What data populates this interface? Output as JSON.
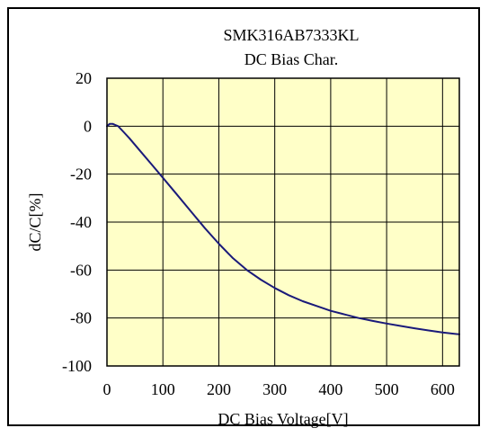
{
  "chart_data": {
    "type": "line",
    "title": "SMK316AB7333KL",
    "subtitle": "DC Bias Char.",
    "xlabel": "DC Bias Voltage[V]",
    "ylabel": "dC/C[%]",
    "xlim": [
      0,
      630
    ],
    "ylim": [
      -100,
      20
    ],
    "x_ticks": [
      0,
      100,
      200,
      300,
      400,
      500,
      600
    ],
    "y_ticks": [
      20,
      0,
      -20,
      -40,
      -60,
      -80,
      -100
    ],
    "x_tick_labels": [
      "0",
      "100",
      "200",
      "300",
      "400",
      "500",
      "600"
    ],
    "y_tick_labels": [
      "20",
      "0",
      "-20",
      "-40",
      "-60",
      "-80",
      "-100"
    ],
    "grid": true,
    "plot_background": "#FFFFC8",
    "series": [
      {
        "color": "#1A1A7A",
        "points": [
          [
            0,
            0
          ],
          [
            5,
            1
          ],
          [
            10,
            1
          ],
          [
            15,
            0.5
          ],
          [
            20,
            0
          ],
          [
            30,
            -2.5
          ],
          [
            40,
            -5
          ],
          [
            60,
            -10.5
          ],
          [
            80,
            -16
          ],
          [
            100,
            -21.5
          ],
          [
            125,
            -28.5
          ],
          [
            150,
            -35.5
          ],
          [
            175,
            -42.5
          ],
          [
            200,
            -49
          ],
          [
            225,
            -55
          ],
          [
            250,
            -60
          ],
          [
            275,
            -64
          ],
          [
            300,
            -67.5
          ],
          [
            325,
            -70.5
          ],
          [
            350,
            -73
          ],
          [
            375,
            -75
          ],
          [
            400,
            -77
          ],
          [
            425,
            -78.5
          ],
          [
            450,
            -80
          ],
          [
            475,
            -81.2
          ],
          [
            500,
            -82.3
          ],
          [
            525,
            -83.3
          ],
          [
            550,
            -84.3
          ],
          [
            575,
            -85.2
          ],
          [
            600,
            -86
          ],
          [
            630,
            -86.8
          ]
        ]
      }
    ]
  }
}
